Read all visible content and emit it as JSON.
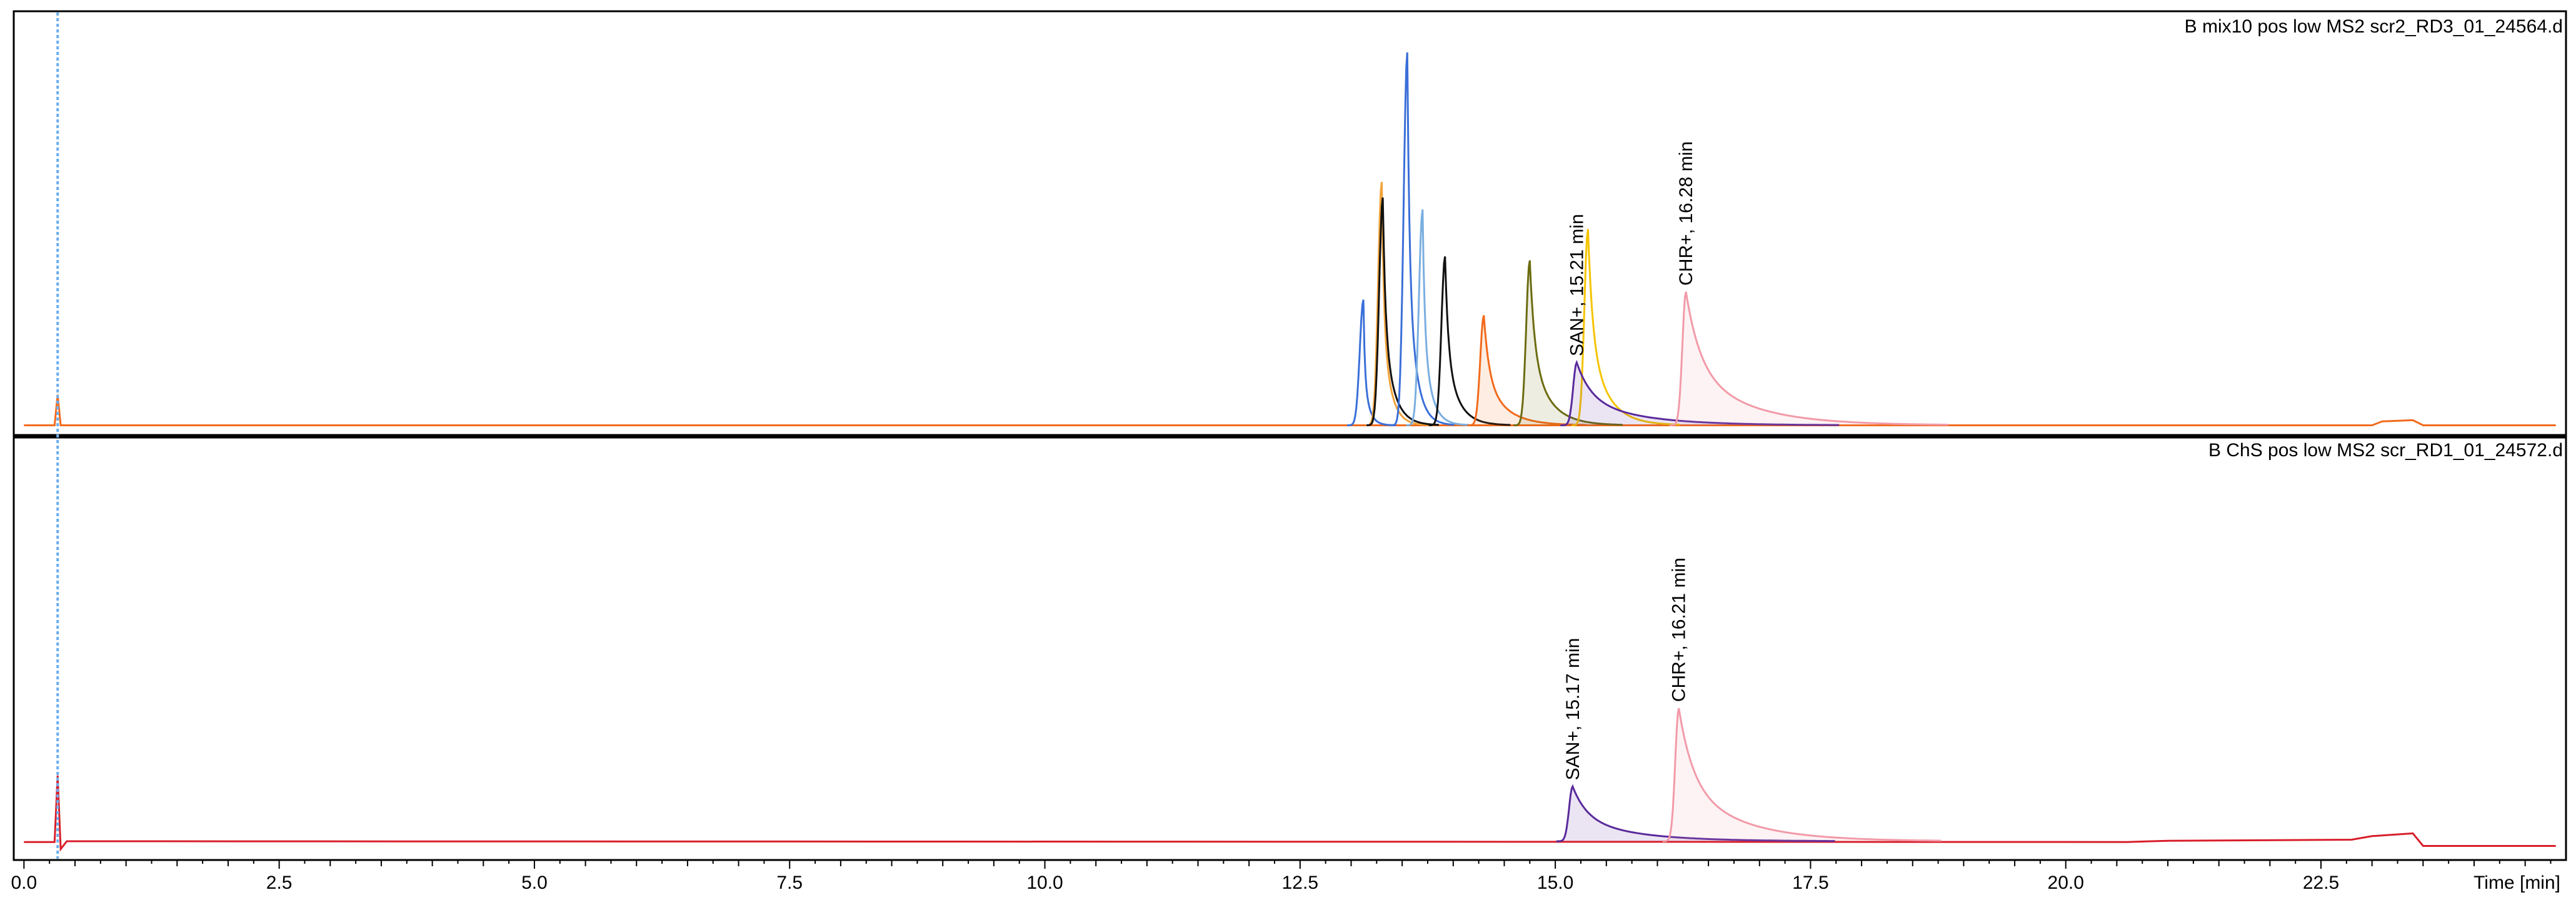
{
  "chart_data": {
    "type": "line",
    "x_unit_label": "Time [min]",
    "xlim": [
      -0.1,
      24.9
    ],
    "x_ticks": [
      "0.0",
      "2.5",
      "5.0",
      "7.5",
      "10.0",
      "12.5",
      "15.0",
      "17.5",
      "20.0",
      "22.5"
    ],
    "x_tick_values": [
      0,
      2.5,
      5,
      7.5,
      10,
      12.5,
      15,
      17.5,
      20,
      22.5
    ],
    "grid": false,
    "marker_line_time": 0.33,
    "marker_line_color": "#6aaef0",
    "panels": [
      {
        "title": "B mix10 pos low MS2 scr2_RD3_01_24564.d",
        "ylim": [
          0,
          1.0
        ],
        "baseline": 0.012,
        "background": {
          "color": "#f26a1b",
          "points": [
            [
              0,
              0.012
            ],
            [
              0.3,
              0.012
            ],
            [
              0.33,
              0.09
            ],
            [
              0.36,
              0.012
            ],
            [
              23.0,
              0.012
            ],
            [
              23.1,
              0.022
            ],
            [
              23.4,
              0.025
            ],
            [
              23.5,
              0.012
            ],
            [
              24.8,
              0.012
            ]
          ]
        },
        "peaks": [
          {
            "t": 13.12,
            "h": 0.32,
            "tail": 0.05,
            "color": "#3a6fd8",
            "fill": false
          },
          {
            "t": 13.3,
            "h": 0.62,
            "tail": 0.08,
            "color": "#f2a33a",
            "fill": false
          },
          {
            "t": 13.31,
            "h": 0.58,
            "tail": 0.1,
            "color": "#111111",
            "fill": false
          },
          {
            "t": 13.55,
            "h": 0.95,
            "tail": 0.08,
            "color": "#3a6fd8",
            "fill": false
          },
          {
            "t": 13.7,
            "h": 0.55,
            "tail": 0.08,
            "color": "#7aaee0",
            "fill": false
          },
          {
            "t": 13.92,
            "h": 0.43,
            "tail": 0.12,
            "color": "#111111",
            "fill": false
          },
          {
            "t": 14.3,
            "h": 0.28,
            "tail": 0.2,
            "color": "#f26a1b",
            "fill": true
          },
          {
            "t": 14.75,
            "h": 0.42,
            "tail": 0.18,
            "color": "#6b6b10",
            "fill": true
          },
          {
            "t": 15.32,
            "h": 0.5,
            "tail": 0.18,
            "color": "#f5c400",
            "fill": false
          },
          {
            "t": 15.21,
            "h": 0.16,
            "tail": 0.55,
            "color": "#5a2a9c",
            "fill": true
          },
          {
            "t": 16.28,
            "h": 0.34,
            "tail": 0.55,
            "color": "#f29aa8",
            "fill": true
          }
        ],
        "annotations": [
          {
            "text": "SAN+, 15.21 min",
            "t": 15.21,
            "h": 0.16
          },
          {
            "text": "CHR+, 16.28 min",
            "t": 16.28,
            "h": 0.34
          }
        ]
      },
      {
        "title": "B ChS pos low MS2 scr_RD1_01_24572.d",
        "ylim": [
          0,
          1.0
        ],
        "baseline": 0.032,
        "background": {
          "color": "#d81e2a",
          "points": [
            [
              0,
              0.03
            ],
            [
              0.3,
              0.03
            ],
            [
              0.33,
              0.2
            ],
            [
              0.36,
              0.012
            ],
            [
              0.42,
              0.032
            ],
            [
              20.6,
              0.03
            ],
            [
              21.0,
              0.033
            ],
            [
              22.8,
              0.036
            ],
            [
              23.0,
              0.045
            ],
            [
              23.4,
              0.052
            ],
            [
              23.5,
              0.02
            ],
            [
              24.8,
              0.02
            ]
          ]
        },
        "peaks": [
          {
            "t": 15.17,
            "h": 0.14,
            "tail": 0.55,
            "color": "#5a2a9c",
            "fill": true
          },
          {
            "t": 16.21,
            "h": 0.34,
            "tail": 0.55,
            "color": "#f29aa8",
            "fill": true
          }
        ],
        "annotations": [
          {
            "text": "SAN+, 15.17 min",
            "t": 15.17,
            "h": 0.14
          },
          {
            "text": "CHR+, 16.21 min",
            "t": 16.21,
            "h": 0.34
          }
        ]
      }
    ]
  }
}
